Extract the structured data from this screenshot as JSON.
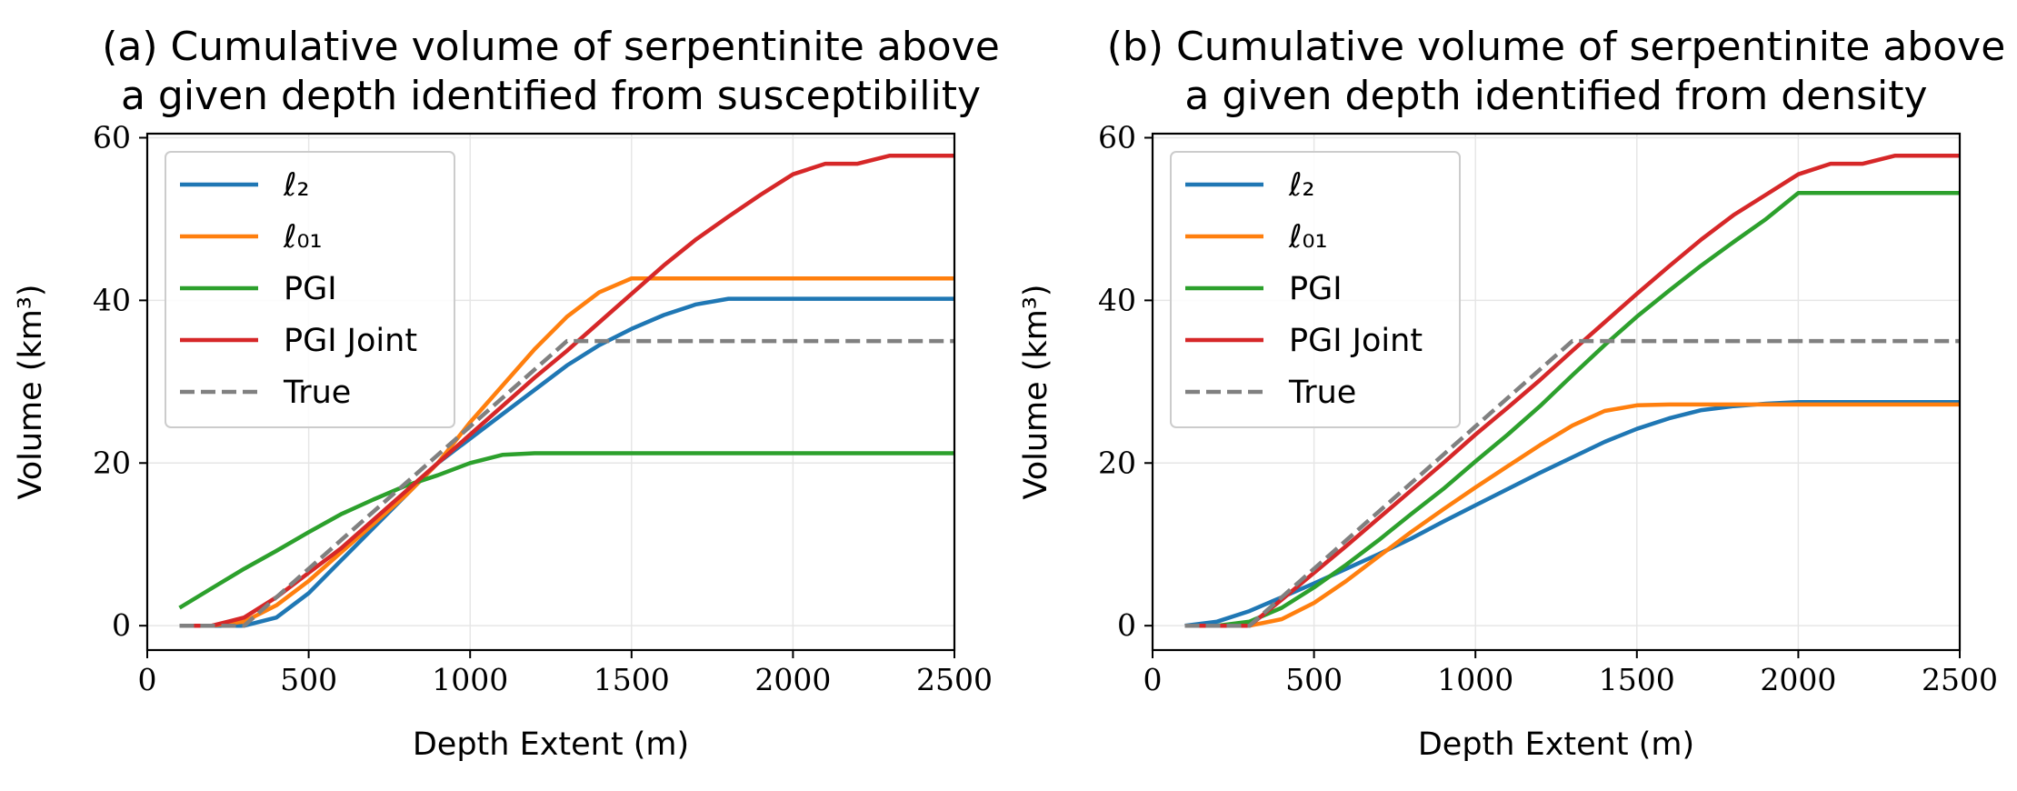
{
  "chart_data": [
    {
      "type": "line",
      "title_line1": "(a) Cumulative volume of serpentinite above",
      "title_line2": "a given depth identified from susceptibility",
      "xlabel": "Depth Extent (m)",
      "ylabel": "Volume (km³)",
      "xlim": [
        0,
        2500
      ],
      "ylim": [
        -3,
        60.5
      ],
      "xticks": [
        0,
        500,
        1000,
        1500,
        2000,
        2500
      ],
      "yticks": [
        0,
        20,
        40,
        60
      ],
      "grid": true,
      "legend_position": "upper-left",
      "series": [
        {
          "name": "ℓ₂",
          "color": "#1f77b4",
          "dash": false,
          "x": [
            100,
            200,
            300,
            400,
            500,
            600,
            700,
            800,
            900,
            1000,
            1100,
            1200,
            1300,
            1400,
            1500,
            1600,
            1700,
            1800,
            1900,
            2000,
            2100,
            2200,
            2300,
            2400,
            2500
          ],
          "y": [
            0,
            0,
            0,
            1,
            4,
            8,
            12,
            16,
            20,
            23,
            26,
            29,
            32,
            34.5,
            36.5,
            38.2,
            39.5,
            40.2,
            40.2,
            40.2,
            40.2,
            40.2,
            40.2,
            40.2,
            40.2
          ]
        },
        {
          "name": "ℓ₀₁",
          "color": "#ff7f0e",
          "dash": false,
          "x": [
            100,
            200,
            300,
            400,
            500,
            600,
            700,
            800,
            900,
            1000,
            1100,
            1200,
            1300,
            1400,
            1500,
            1600,
            1700,
            1800,
            1900,
            2000,
            2100,
            2200,
            2300,
            2400,
            2500
          ],
          "y": [
            0,
            0,
            0.5,
            2.5,
            5.5,
            9,
            12.5,
            16,
            20,
            25,
            29.5,
            34,
            38,
            41,
            42.7,
            42.7,
            42.7,
            42.7,
            42.7,
            42.7,
            42.7,
            42.7,
            42.7,
            42.7,
            42.7
          ]
        },
        {
          "name": "PGI",
          "color": "#2ca02c",
          "dash": false,
          "x": [
            100,
            200,
            300,
            400,
            500,
            600,
            700,
            800,
            900,
            1000,
            1100,
            1200,
            1300,
            1400,
            1500,
            1600,
            1700,
            1800,
            1900,
            2000,
            2100,
            2200,
            2300,
            2400,
            2500
          ],
          "y": [
            2.2,
            4.6,
            7,
            9.2,
            11.5,
            13.7,
            15.5,
            17.2,
            18.5,
            20,
            21,
            21.2,
            21.2,
            21.2,
            21.2,
            21.2,
            21.2,
            21.2,
            21.2,
            21.2,
            21.2,
            21.2,
            21.2,
            21.2,
            21.2
          ]
        },
        {
          "name": "PGI Joint",
          "color": "#d62728",
          "dash": false,
          "x": [
            100,
            200,
            300,
            400,
            500,
            600,
            700,
            800,
            900,
            1000,
            1100,
            1200,
            1300,
            1400,
            1500,
            1600,
            1700,
            1800,
            1900,
            2000,
            2100,
            2200,
            2300,
            2400,
            2500
          ],
          "y": [
            0,
            0,
            1,
            3.5,
            6.5,
            9.5,
            13,
            16.5,
            20,
            23.5,
            27,
            30.5,
            33.8,
            37.3,
            40.8,
            44.3,
            47.5,
            50.3,
            53,
            55.5,
            56.8,
            56.8,
            57.8,
            57.8,
            57.8
          ]
        },
        {
          "name": "True",
          "color": "#808080",
          "dash": true,
          "x": [
            100,
            200,
            300,
            400,
            500,
            600,
            700,
            800,
            900,
            1000,
            1100,
            1200,
            1300,
            1400,
            1500,
            1600,
            1700,
            1800,
            1900,
            2000,
            2100,
            2200,
            2300,
            2400,
            2500
          ],
          "y": [
            0,
            0,
            0,
            3.5,
            7,
            10.5,
            14,
            17.5,
            21,
            24.5,
            28,
            31.5,
            35,
            35,
            35,
            35,
            35,
            35,
            35,
            35,
            35,
            35,
            35,
            35,
            35
          ]
        }
      ]
    },
    {
      "type": "line",
      "title_line1": "(b) Cumulative volume of serpentinite above",
      "title_line2": "a given depth identified from density",
      "xlabel": "Depth Extent (m)",
      "ylabel": "Volume (km³)",
      "xlim": [
        0,
        2500
      ],
      "ylim": [
        -3,
        60.5
      ],
      "xticks": [
        0,
        500,
        1000,
        1500,
        2000,
        2500
      ],
      "yticks": [
        0,
        20,
        40,
        60
      ],
      "grid": true,
      "legend_position": "upper-left",
      "series": [
        {
          "name": "ℓ₂",
          "color": "#1f77b4",
          "dash": false,
          "x": [
            100,
            200,
            300,
            400,
            500,
            600,
            700,
            800,
            900,
            1000,
            1100,
            1200,
            1300,
            1400,
            1500,
            1600,
            1700,
            1800,
            1900,
            2000,
            2100,
            2200,
            2300,
            2400,
            2500
          ],
          "y": [
            0,
            0.5,
            1.8,
            3.5,
            5.2,
            7,
            8.8,
            10.7,
            12.8,
            14.8,
            16.8,
            18.8,
            20.7,
            22.6,
            24.2,
            25.5,
            26.5,
            27,
            27.3,
            27.5,
            27.5,
            27.5,
            27.5,
            27.5,
            27.5
          ]
        },
        {
          "name": "ℓ₀₁",
          "color": "#ff7f0e",
          "dash": false,
          "x": [
            100,
            200,
            300,
            400,
            500,
            600,
            700,
            800,
            900,
            1000,
            1100,
            1200,
            1300,
            1400,
            1500,
            1600,
            1700,
            1800,
            1900,
            2000,
            2100,
            2200,
            2300,
            2400,
            2500
          ],
          "y": [
            0,
            0,
            0,
            0.8,
            2.8,
            5.5,
            8.5,
            11.5,
            14.3,
            17,
            19.6,
            22.2,
            24.6,
            26.4,
            27.1,
            27.2,
            27.2,
            27.2,
            27.2,
            27.2,
            27.2,
            27.2,
            27.2,
            27.2,
            27.2
          ]
        },
        {
          "name": "PGI",
          "color": "#2ca02c",
          "dash": false,
          "x": [
            100,
            200,
            300,
            400,
            500,
            600,
            700,
            800,
            900,
            1000,
            1100,
            1200,
            1300,
            1400,
            1500,
            1600,
            1700,
            1800,
            1900,
            2000,
            2100,
            2200,
            2300,
            2400,
            2500
          ],
          "y": [
            0,
            0,
            0.5,
            2.2,
            4.7,
            7.5,
            10.5,
            13.7,
            16.8,
            20.2,
            23.5,
            27,
            30.8,
            34.5,
            38,
            41.2,
            44.3,
            47.2,
            50,
            53.2,
            53.2,
            53.2,
            53.2,
            53.2,
            53.2
          ]
        },
        {
          "name": "PGI Joint",
          "color": "#d62728",
          "dash": false,
          "x": [
            100,
            200,
            300,
            400,
            500,
            600,
            700,
            800,
            900,
            1000,
            1100,
            1200,
            1300,
            1400,
            1500,
            1600,
            1700,
            1800,
            1900,
            2000,
            2100,
            2200,
            2300,
            2400,
            2500
          ],
          "y": [
            0,
            0,
            0,
            3.2,
            6.5,
            9.8,
            13.2,
            16.6,
            20,
            23.5,
            26.8,
            30.2,
            33.8,
            37.3,
            40.8,
            44.2,
            47.5,
            50.5,
            53,
            55.5,
            56.8,
            56.8,
            57.8,
            57.8,
            57.8
          ]
        },
        {
          "name": "True",
          "color": "#808080",
          "dash": true,
          "x": [
            100,
            200,
            300,
            400,
            500,
            600,
            700,
            800,
            900,
            1000,
            1100,
            1200,
            1300,
            1400,
            1500,
            1600,
            1700,
            1800,
            1900,
            2000,
            2100,
            2200,
            2300,
            2400,
            2500
          ],
          "y": [
            0,
            0,
            0,
            3.5,
            7,
            10.5,
            14,
            17.5,
            21,
            24.5,
            28,
            31.5,
            35,
            35,
            35,
            35,
            35,
            35,
            35,
            35,
            35,
            35,
            35,
            35,
            35
          ]
        }
      ]
    }
  ]
}
